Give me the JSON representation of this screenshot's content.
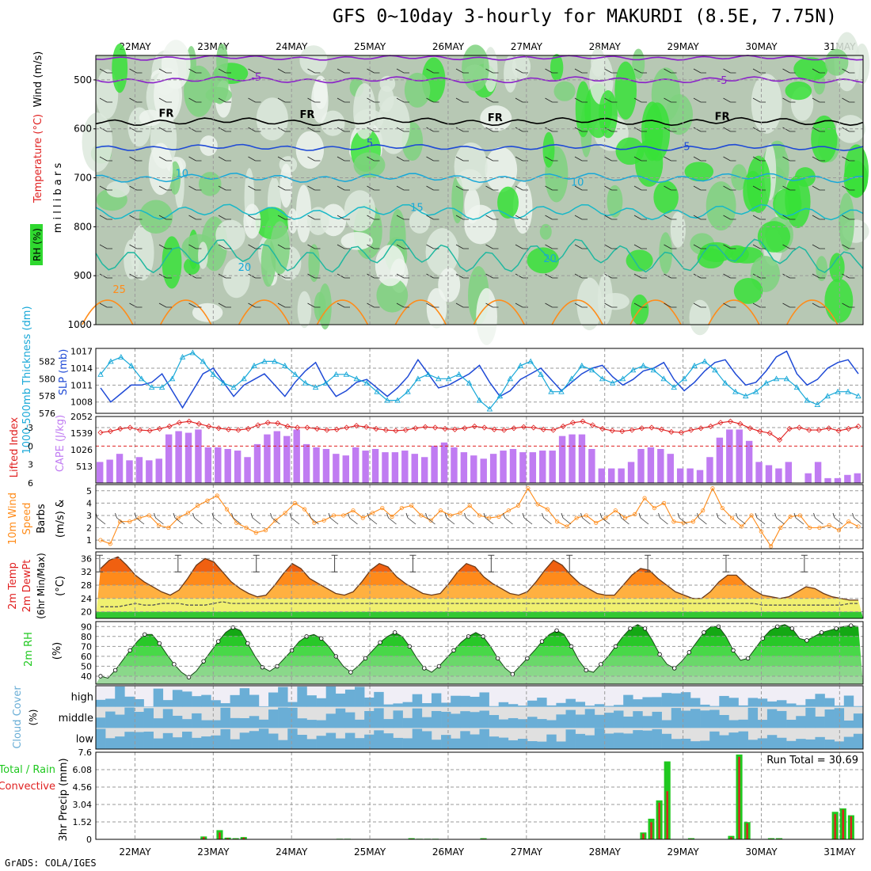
{
  "title": "GFS 0~10day 3-hourly for MAKURDI (8.5E, 7.75N)",
  "footer": "GrADS: COLA/IGES",
  "days": [
    "22MAY",
    "23MAY",
    "24MAY",
    "25MAY",
    "26MAY",
    "27MAY",
    "28MAY",
    "29MAY",
    "30MAY",
    "31MAY"
  ],
  "colors": {
    "purple": "#8a1fc9",
    "blue": "#1f4ad6",
    "cyan": "#18a8d8",
    "orange": "#ff8c1a",
    "red": "#e02020",
    "green": "#1fc81f",
    "lavender": "#c07cf2",
    "skyblue": "#6aaed6"
  },
  "chart_data": [
    {
      "id": "upper_air",
      "type": "heatmap",
      "ylabel": "m i l l i b a r s",
      "legend": [
        "Wind (m/s)",
        "Temperature (°C)",
        "RH (%)"
      ],
      "yticks": [
        500,
        600,
        700,
        800,
        900,
        1000
      ],
      "ylim": [
        450,
        1000
      ],
      "contour_labels": [
        {
          "text": "-5",
          "day": 23.55,
          "p": 502
        },
        {
          "text": "-5",
          "day": 29.5,
          "p": 508
        },
        {
          "text": "FR",
          "day": 22.4,
          "p": 575
        },
        {
          "text": "FR",
          "day": 24.2,
          "p": 578
        },
        {
          "text": "FR",
          "day": 26.6,
          "p": 584
        },
        {
          "text": "FR",
          "day": 29.5,
          "p": 582
        },
        {
          "text": "5",
          "day": 25.0,
          "p": 636
        },
        {
          "text": "5",
          "day": 29.05,
          "p": 643
        },
        {
          "text": "10",
          "day": 22.6,
          "p": 698
        },
        {
          "text": "10",
          "day": 27.65,
          "p": 716
        },
        {
          "text": "15",
          "day": 25.6,
          "p": 768
        },
        {
          "text": "20",
          "day": 23.4,
          "p": 890
        },
        {
          "text": "20",
          "day": 27.3,
          "p": 872
        },
        {
          "text": "25",
          "day": 21.8,
          "p": 935
        }
      ]
    },
    {
      "id": "slp_thickness",
      "type": "line",
      "ylabel_left": "1000-500mb Thickness (dm)",
      "ylabel_right": "SLP (mb)",
      "yticks_left": [
        576,
        578,
        580,
        582
      ],
      "yticks_right": [
        1008,
        1011,
        1014,
        1017
      ],
      "series": [
        {
          "name": "SLP (mb)",
          "values": [
            1010.5,
            1008,
            1009.5,
            1011,
            1011,
            1011.5,
            1013,
            1010,
            1007,
            1010,
            1013,
            1014,
            1011.5,
            1009,
            1011,
            1012,
            1013,
            1011,
            1009,
            1011.5,
            1013.5,
            1015,
            1011.5,
            1009,
            1010,
            1011.5,
            1012,
            1010.5,
            1009,
            1010.5,
            1012.5,
            1015.5,
            1013,
            1010.5,
            1011,
            1012,
            1013,
            1014.5,
            1011.5,
            1009,
            1010,
            1012,
            1013,
            1014,
            1012,
            1010,
            1011.5,
            1013,
            1014,
            1014.5,
            1012.5,
            1011,
            1012,
            1013.5,
            1014,
            1015,
            1012,
            1010,
            1011.5,
            1013.5,
            1015,
            1015.5,
            1013,
            1011,
            1011.5,
            1013.5,
            1016,
            1017,
            1013,
            1011,
            1012,
            1014,
            1015,
            1015.5,
            1013
          ]
        },
        {
          "name": "1000-500mb Thickness (dm)",
          "values": [
            580.5,
            582,
            582.5,
            581.5,
            580,
            579,
            579,
            580,
            582.5,
            583,
            582,
            580.5,
            579.5,
            579,
            580,
            581.5,
            582,
            582,
            581.5,
            580.5,
            579.5,
            579,
            579.5,
            580.5,
            580.5,
            580,
            579.5,
            578.5,
            577.5,
            577.5,
            578.5,
            580,
            580.5,
            580,
            580,
            580.5,
            579.5,
            577.5,
            576.5,
            578,
            580,
            581.5,
            582,
            580.5,
            578.5,
            578.5,
            580,
            581.5,
            581,
            580,
            579.5,
            580,
            581,
            581.5,
            581,
            580,
            579,
            580,
            581.5,
            582,
            581,
            579.5,
            578.5,
            578,
            578.5,
            579.5,
            580,
            580,
            579,
            577.5,
            577,
            578,
            578.5,
            578.5,
            578
          ]
        }
      ]
    },
    {
      "id": "cape_li",
      "type": "bar",
      "ylabel_left": "Lifted Index",
      "ylabel_right": "CAPE (J/kg)",
      "yticks_left": [
        -3,
        0,
        3,
        6
      ],
      "yticks_right": [
        513,
        1026,
        1539,
        2052
      ],
      "series": [
        {
          "name": "CAPE (J/kg)",
          "values": [
            650,
            720,
            900,
            700,
            800,
            700,
            750,
            1500,
            1600,
            1550,
            1650,
            1100,
            1100,
            1050,
            1000,
            800,
            1200,
            1500,
            1600,
            1450,
            1650,
            1200,
            1100,
            1050,
            900,
            850,
            1100,
            1000,
            1050,
            950,
            950,
            1000,
            900,
            800,
            1150,
            1250,
            1100,
            950,
            850,
            750,
            900,
            1000,
            1050,
            950,
            950,
            1000,
            1000,
            1450,
            1500,
            1500,
            1050,
            450,
            450,
            450,
            650,
            1050,
            1100,
            1050,
            900,
            450,
            450,
            400,
            800,
            1400,
            1650,
            1650,
            1300,
            650,
            550,
            450,
            650,
            0,
            300,
            650,
            150,
            150,
            250,
            300
          ]
        },
        {
          "name": "Lifted Index",
          "values": [
            -2.2,
            -2.4,
            -2.8,
            -3.0,
            -2.6,
            -2.5,
            -2.8,
            -3.2,
            -3.8,
            -4.0,
            -3.6,
            -3.2,
            -2.9,
            -2.7,
            -2.6,
            -2.8,
            -3.4,
            -3.8,
            -3.7,
            -3.2,
            -3.0,
            -3.0,
            -2.8,
            -2.6,
            -2.7,
            -3.0,
            -3.3,
            -3.1,
            -2.8,
            -2.6,
            -2.5,
            -2.6,
            -2.9,
            -3.1,
            -3.0,
            -2.8,
            -2.7,
            -2.9,
            -3.2,
            -3.0,
            -2.7,
            -2.6,
            -2.9,
            -3.1,
            -3.0,
            -2.7,
            -2.6,
            -3.2,
            -3.8,
            -4.0,
            -3.4,
            -2.8,
            -2.5,
            -2.4,
            -2.6,
            -2.9,
            -3.0,
            -2.7,
            -2.3,
            -2.2,
            -2.6,
            -2.9,
            -3.2,
            -3.8,
            -4.0,
            -3.6,
            -2.9,
            -2.4,
            -2.1,
            -1.0,
            -2.8,
            -3.0,
            -2.6,
            -2.6,
            -2.9,
            -2.5,
            -2.8,
            -3.2
          ]
        }
      ]
    },
    {
      "id": "wind10m",
      "type": "line",
      "ylabel": "10m Wind Speed (m/s) & Barbs",
      "yticks": [
        1,
        2,
        3,
        4,
        5
      ],
      "ylim": [
        0.3,
        5.5
      ],
      "series": [
        {
          "name": "10m Wind Speed (m/s)",
          "values": [
            1.0,
            0.7,
            2.5,
            2.5,
            2.8,
            3.0,
            2.2,
            2.0,
            2.8,
            3.2,
            3.8,
            4.2,
            4.6,
            3.5,
            2.4,
            2.0,
            1.6,
            1.8,
            2.6,
            3.2,
            4.0,
            3.5,
            2.4,
            2.6,
            3.0,
            3.0,
            3.4,
            2.8,
            3.2,
            3.6,
            2.9,
            3.6,
            3.8,
            3.0,
            2.6,
            3.4,
            3.0,
            3.2,
            3.8,
            3.0,
            2.8,
            2.9,
            3.4,
            3.8,
            5.2,
            3.9,
            3.5,
            2.5,
            2.1,
            2.8,
            3.0,
            2.4,
            2.8,
            3.4,
            2.8,
            3.1,
            4.4,
            3.6,
            4.0,
            2.5,
            2.4,
            2.5,
            3.4,
            5.2,
            3.6,
            2.8,
            2.1,
            3.0,
            1.7,
            0.5,
            2.0,
            2.9,
            3.0,
            2.0,
            2.0,
            2.2,
            1.8,
            2.5,
            2.1
          ]
        }
      ]
    },
    {
      "id": "temp2m",
      "type": "area",
      "ylabel": "2m Temp 2m DewPt (6hr Min/Max) (°C)",
      "yticks": [
        20,
        24,
        28,
        32,
        36
      ],
      "ylim": [
        18,
        38
      ],
      "series": [
        {
          "name": "2m Temp",
          "values": [
            33,
            35.5,
            36.5,
            34,
            31,
            29,
            27.5,
            26,
            25,
            26.5,
            30,
            34,
            36,
            35,
            32,
            29,
            27,
            25.5,
            24.5,
            25,
            28,
            31.5,
            34.5,
            33,
            30,
            28.5,
            27,
            25.5,
            25,
            26,
            29,
            32.5,
            34.5,
            33.5,
            30.5,
            28.5,
            27,
            25.5,
            25,
            25.5,
            28.5,
            32,
            34.5,
            33.5,
            30.5,
            28.5,
            27,
            25.5,
            25,
            26,
            29,
            32.5,
            35.5,
            34,
            31,
            28.5,
            27,
            25.5,
            25,
            25,
            28,
            31,
            33,
            32.5,
            30,
            28,
            26,
            25,
            24,
            24,
            26,
            29,
            31,
            31,
            28.5,
            26.5,
            25,
            24.5,
            24,
            24.5,
            26,
            27.5,
            27,
            25.5,
            24.5,
            24,
            23.5,
            23.5
          ]
        },
        {
          "name": "2m DewPt",
          "values": [
            21.5,
            21.5,
            21.5,
            22,
            22.5,
            22,
            22,
            22.5,
            22.5,
            22.5,
            22,
            22,
            22,
            22.5,
            23,
            22.5,
            22.5,
            22.5,
            22.5,
            22.5,
            22.5,
            22.5,
            22.5,
            22.5,
            22.5,
            22.5,
            22.5,
            22.5,
            22.5,
            22.5,
            22.5,
            22.5,
            22.5,
            22.5,
            22.5,
            22.5,
            22.5,
            22.5,
            22.5,
            22.5,
            22.5,
            22.5,
            22.5,
            22.5,
            22.5,
            22.5,
            22.5,
            22.5,
            22.5,
            22.5,
            22.5,
            22.5,
            22.5,
            22.5,
            22.5,
            22.5,
            22.5,
            22.5,
            22.5,
            22.5,
            22.5,
            22.5,
            22.5,
            22.5,
            22.5,
            22.5,
            22.5,
            22.5,
            22.5,
            22.5,
            22.5,
            22.5,
            22.5,
            22.5,
            22.5,
            22.5,
            22,
            22,
            22,
            22,
            22,
            22,
            22,
            22,
            22,
            22,
            22.5,
            22.5
          ]
        }
      ]
    },
    {
      "id": "rh2m",
      "type": "area",
      "ylabel": "2m RH (%)",
      "yticks": [
        40,
        50,
        60,
        70,
        80,
        90
      ],
      "ylim": [
        32,
        95
      ],
      "series": [
        {
          "name": "2m RH (%)",
          "values": [
            40,
            38,
            46,
            56,
            66,
            75,
            82,
            82,
            73,
            62,
            52,
            44,
            39,
            45,
            55,
            65,
            75,
            84,
            89,
            86,
            73,
            60,
            49,
            45,
            50,
            58,
            66,
            75,
            80,
            82,
            78,
            70,
            60,
            50,
            44,
            50,
            58,
            66,
            74,
            80,
            84,
            80,
            70,
            58,
            48,
            44,
            50,
            58,
            66,
            74,
            80,
            84,
            80,
            70,
            58,
            48,
            42,
            50,
            58,
            66,
            75,
            82,
            86,
            82,
            70,
            56,
            46,
            44,
            52,
            60,
            70,
            80,
            88,
            92,
            88,
            76,
            62,
            52,
            48,
            55,
            64,
            74,
            84,
            90,
            90,
            80,
            66,
            56,
            58,
            68,
            78,
            86,
            90,
            92,
            88,
            78,
            76,
            80,
            84,
            86,
            88,
            90,
            91,
            90
          ]
        }
      ]
    },
    {
      "id": "cloud",
      "type": "heatmap",
      "ylabel": "Cloud Cover (%)",
      "rows": [
        "high",
        "middle",
        "low"
      ]
    },
    {
      "id": "precip",
      "type": "bar",
      "ylabel": "3hr Precip (mm)",
      "legend": [
        "Total / Rain",
        "Convective"
      ],
      "annotation": "Run Total = 30.69",
      "yticks": [
        0,
        1.52,
        3.04,
        4.56,
        6.08,
        7.6
      ],
      "ylim": [
        0,
        7.6
      ],
      "series": [
        {
          "name": "Total / Rain",
          "values": [
            0,
            0,
            0,
            0,
            0,
            0,
            0,
            0,
            0,
            0,
            0,
            0,
            0,
            0.25,
            0,
            0.8,
            0.15,
            0.1,
            0.2,
            0,
            0,
            0,
            0,
            0,
            0,
            0,
            0,
            0,
            0,
            0,
            0.05,
            0.05,
            0,
            0,
            0,
            0,
            0,
            0,
            0,
            0.1,
            0.05,
            0.05,
            0.05,
            0,
            0,
            0,
            0,
            0,
            0.1,
            0,
            0,
            0,
            0,
            0,
            0,
            0,
            0,
            0,
            0,
            0,
            0,
            0,
            0,
            0,
            0,
            0,
            0,
            0,
            0.6,
            1.8,
            3.4,
            6.8,
            0,
            0,
            0.1,
            0,
            0,
            0,
            0,
            0.3,
            7.4,
            1.5,
            0,
            0,
            0.1,
            0.1,
            0,
            0,
            0,
            0,
            0,
            0,
            2.4,
            2.7,
            2.1,
            0
          ]
        },
        {
          "name": "Convective",
          "values": [
            0,
            0,
            0,
            0,
            0,
            0,
            0,
            0,
            0,
            0,
            0,
            0,
            0,
            0.2,
            0,
            0.6,
            0.1,
            0.05,
            0.15,
            0,
            0,
            0,
            0,
            0,
            0,
            0,
            0,
            0,
            0,
            0,
            0.03,
            0.03,
            0,
            0,
            0,
            0,
            0,
            0,
            0,
            0.05,
            0.03,
            0.03,
            0.03,
            0,
            0,
            0,
            0,
            0,
            0.05,
            0,
            0,
            0,
            0,
            0,
            0,
            0,
            0,
            0,
            0,
            0,
            0,
            0,
            0,
            0,
            0,
            0,
            0,
            0,
            0.5,
            1.5,
            3.2,
            4.2,
            0,
            0,
            0.05,
            0,
            0,
            0,
            0,
            0.2,
            7.2,
            1.4,
            0,
            0,
            0.05,
            0.05,
            0,
            0,
            0,
            0,
            0,
            0,
            2.2,
            2.6,
            2.0,
            0
          ]
        }
      ]
    }
  ]
}
